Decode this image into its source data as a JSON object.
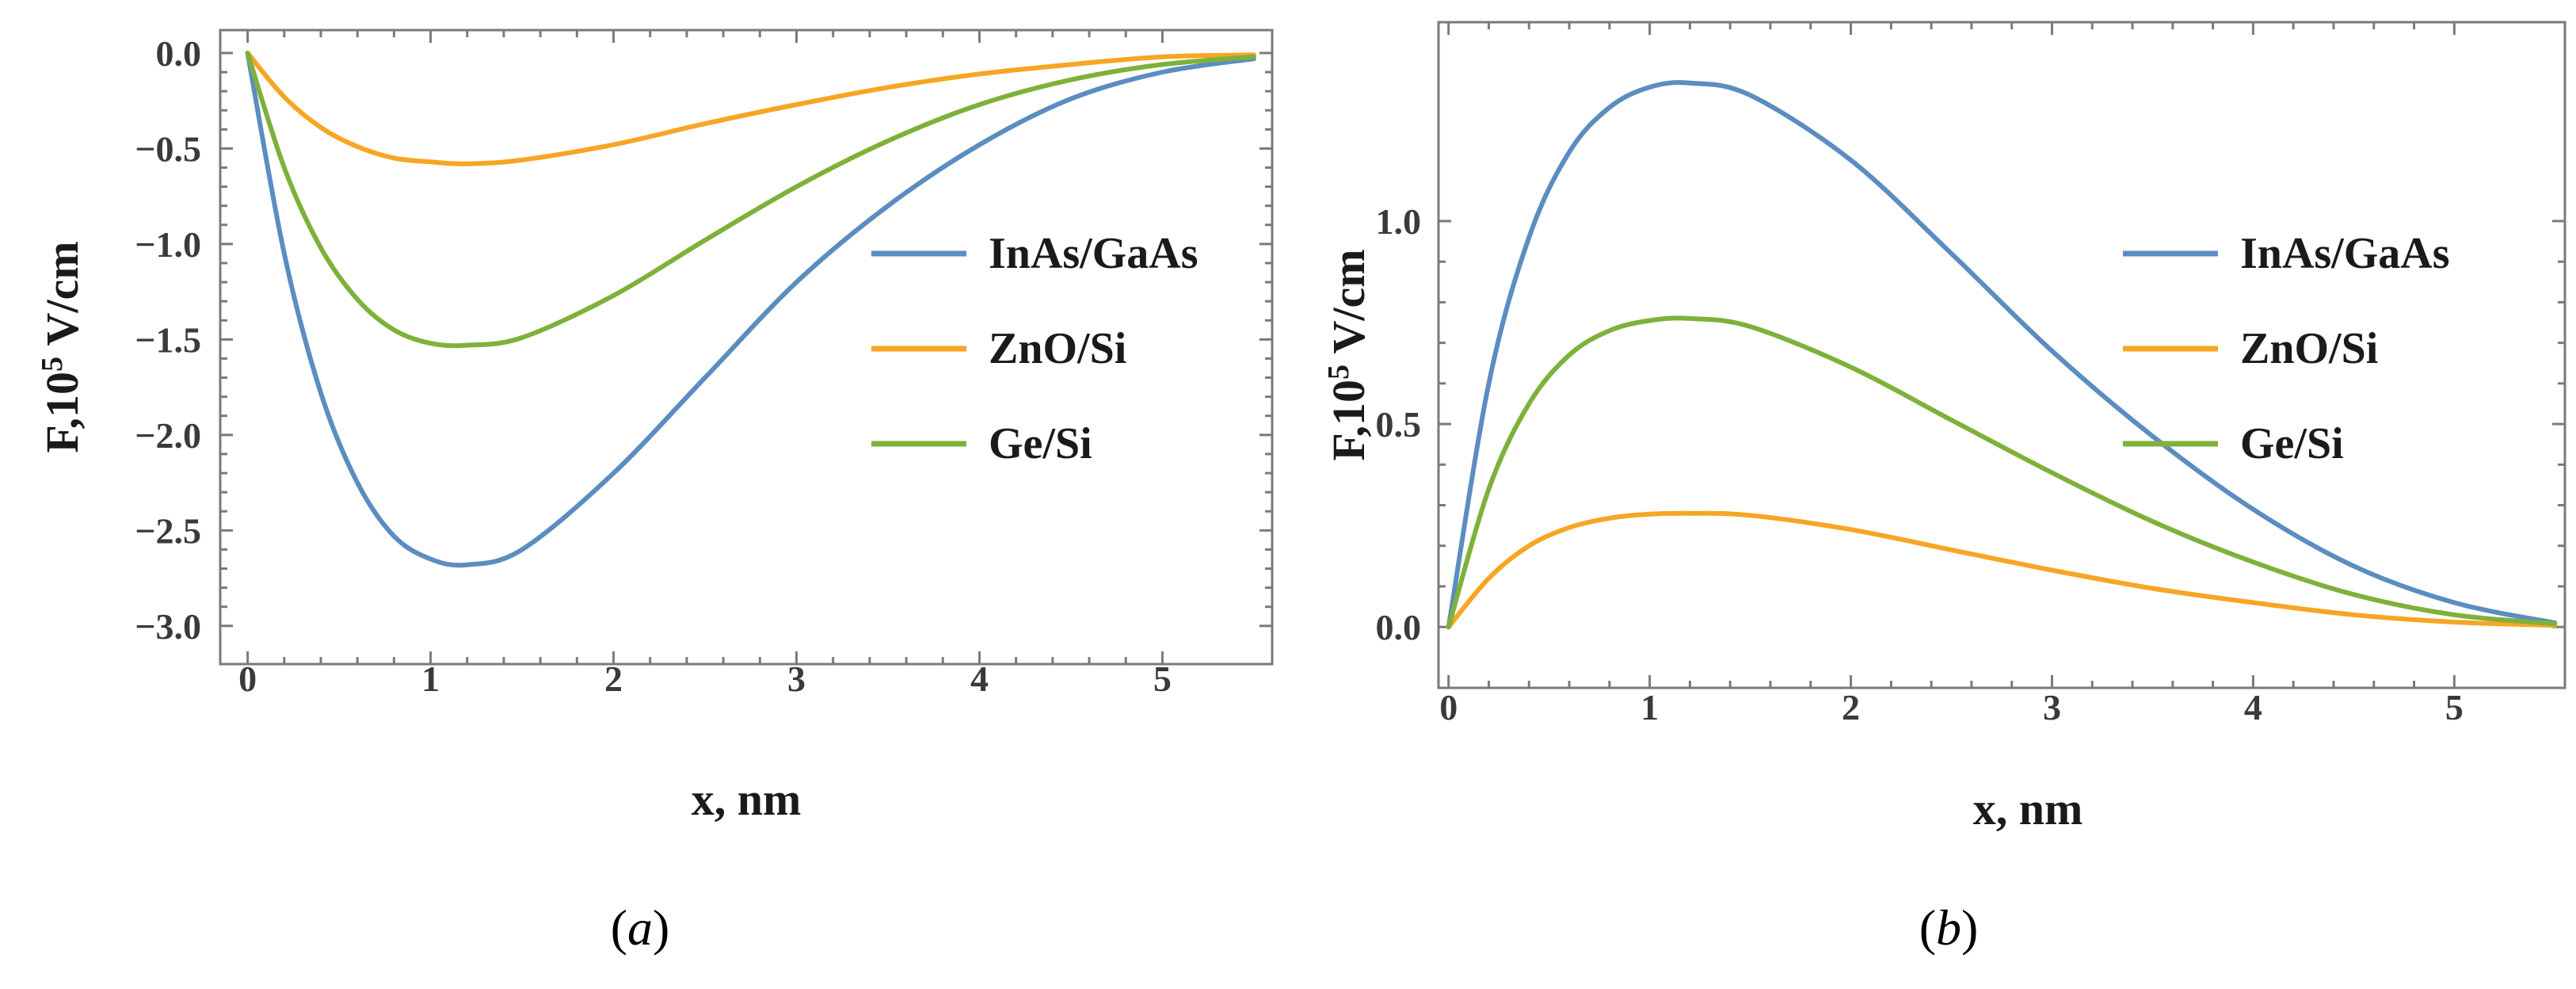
{
  "colors": {
    "InAs/GaAs": "#5b8dc0",
    "ZnO/Si": "#f5a623",
    "Ge/Si": "#7fb13a",
    "frame": "#7a7a7a"
  },
  "chart_data": [
    {
      "type": "line",
      "panel": "a",
      "caption_open": "(",
      "caption_letter": "a",
      "caption_close": ")",
      "xlabel": "x, nm",
      "ylabel_prefix": "F,10",
      "ylabel_sup": "5",
      "ylabel_suffix": " V/cm",
      "xlim": [
        -0.15,
        5.6
      ],
      "ylim": [
        -3.2,
        0.12
      ],
      "xticks": [
        0,
        1,
        2,
        3,
        4,
        5
      ],
      "xtick_labels": [
        "0",
        "1",
        "2",
        "3",
        "4",
        "5"
      ],
      "yticks": [
        0.0,
        -0.5,
        -1.0,
        -1.5,
        -2.0,
        -2.5,
        -3.0
      ],
      "ytick_labels": [
        "0.0",
        "−0.5",
        "−1.0",
        "−1.5",
        "−2.0",
        "−2.5",
        "−3.0"
      ],
      "legend_position": "center-right",
      "series": [
        {
          "name": "InAs/GaAs",
          "peak": -2.68,
          "x": [
            0,
            0.2,
            0.4,
            0.6,
            0.8,
            1.0,
            1.2,
            1.5,
            2.0,
            2.5,
            3.0,
            3.5,
            4.0,
            4.5,
            5.0,
            5.5
          ],
          "values": [
            0,
            -1.05,
            -1.78,
            -2.25,
            -2.53,
            -2.65,
            -2.68,
            -2.6,
            -2.2,
            -1.7,
            -1.2,
            -0.8,
            -0.48,
            -0.24,
            -0.1,
            -0.03
          ]
        },
        {
          "name": "ZnO/Si",
          "peak": -0.58,
          "x": [
            0,
            0.2,
            0.4,
            0.6,
            0.8,
            1.0,
            1.2,
            1.5,
            2.0,
            2.5,
            3.0,
            3.5,
            4.0,
            4.5,
            5.0,
            5.5
          ],
          "values": [
            0,
            -0.23,
            -0.39,
            -0.49,
            -0.55,
            -0.57,
            -0.58,
            -0.56,
            -0.48,
            -0.37,
            -0.27,
            -0.18,
            -0.11,
            -0.06,
            -0.02,
            -0.01
          ]
        },
        {
          "name": "Ge/Si",
          "peak": -1.53,
          "x": [
            0,
            0.2,
            0.4,
            0.6,
            0.8,
            1.0,
            1.2,
            1.5,
            2.0,
            2.5,
            3.0,
            3.5,
            4.0,
            4.5,
            5.0,
            5.5
          ],
          "values": [
            0,
            -0.6,
            -1.02,
            -1.29,
            -1.45,
            -1.52,
            -1.53,
            -1.49,
            -1.27,
            -0.98,
            -0.7,
            -0.46,
            -0.27,
            -0.14,
            -0.06,
            -0.02
          ]
        }
      ]
    },
    {
      "type": "line",
      "panel": "b",
      "caption_open": "(",
      "caption_letter": "b",
      "caption_close": ")",
      "xlabel": "x, nm",
      "ylabel_prefix": "F,10",
      "ylabel_sup": "5",
      "ylabel_suffix": " V/cm",
      "xlim": [
        -0.05,
        5.55
      ],
      "ylim": [
        -0.15,
        1.49
      ],
      "xticks": [
        0,
        1,
        2,
        3,
        4,
        5
      ],
      "xtick_labels": [
        "0",
        "1",
        "2",
        "3",
        "4",
        "5"
      ],
      "yticks": [
        0.0,
        0.5,
        1.0
      ],
      "ytick_labels": [
        "0.0",
        "0.5",
        "1.0"
      ],
      "legend_position": "center-right",
      "series": [
        {
          "name": "InAs/GaAs",
          "peak": 1.34,
          "x": [
            0,
            0.2,
            0.4,
            0.6,
            0.8,
            1.0,
            1.2,
            1.5,
            2.0,
            2.5,
            3.0,
            3.5,
            4.0,
            4.5,
            5.0,
            5.5
          ],
          "values": [
            0,
            0.6,
            0.96,
            1.17,
            1.28,
            1.33,
            1.34,
            1.31,
            1.15,
            0.92,
            0.68,
            0.47,
            0.29,
            0.15,
            0.06,
            0.01
          ]
        },
        {
          "name": "ZnO/Si",
          "peak": 0.28,
          "x": [
            0,
            0.2,
            0.4,
            0.6,
            0.8,
            1.0,
            1.2,
            1.5,
            2.0,
            2.5,
            3.0,
            3.5,
            4.0,
            4.5,
            5.0,
            5.5
          ],
          "values": [
            0,
            0.12,
            0.2,
            0.245,
            0.268,
            0.278,
            0.28,
            0.275,
            0.24,
            0.19,
            0.14,
            0.095,
            0.06,
            0.03,
            0.012,
            0.004
          ]
        },
        {
          "name": "Ge/Si",
          "peak": 0.76,
          "x": [
            0,
            0.2,
            0.4,
            0.6,
            0.8,
            1.0,
            1.2,
            1.5,
            2.0,
            2.5,
            3.0,
            3.5,
            4.0,
            4.5,
            5.0,
            5.5
          ],
          "values": [
            0,
            0.34,
            0.55,
            0.67,
            0.73,
            0.755,
            0.76,
            0.74,
            0.64,
            0.51,
            0.38,
            0.26,
            0.16,
            0.08,
            0.03,
            0.008
          ]
        }
      ]
    }
  ]
}
